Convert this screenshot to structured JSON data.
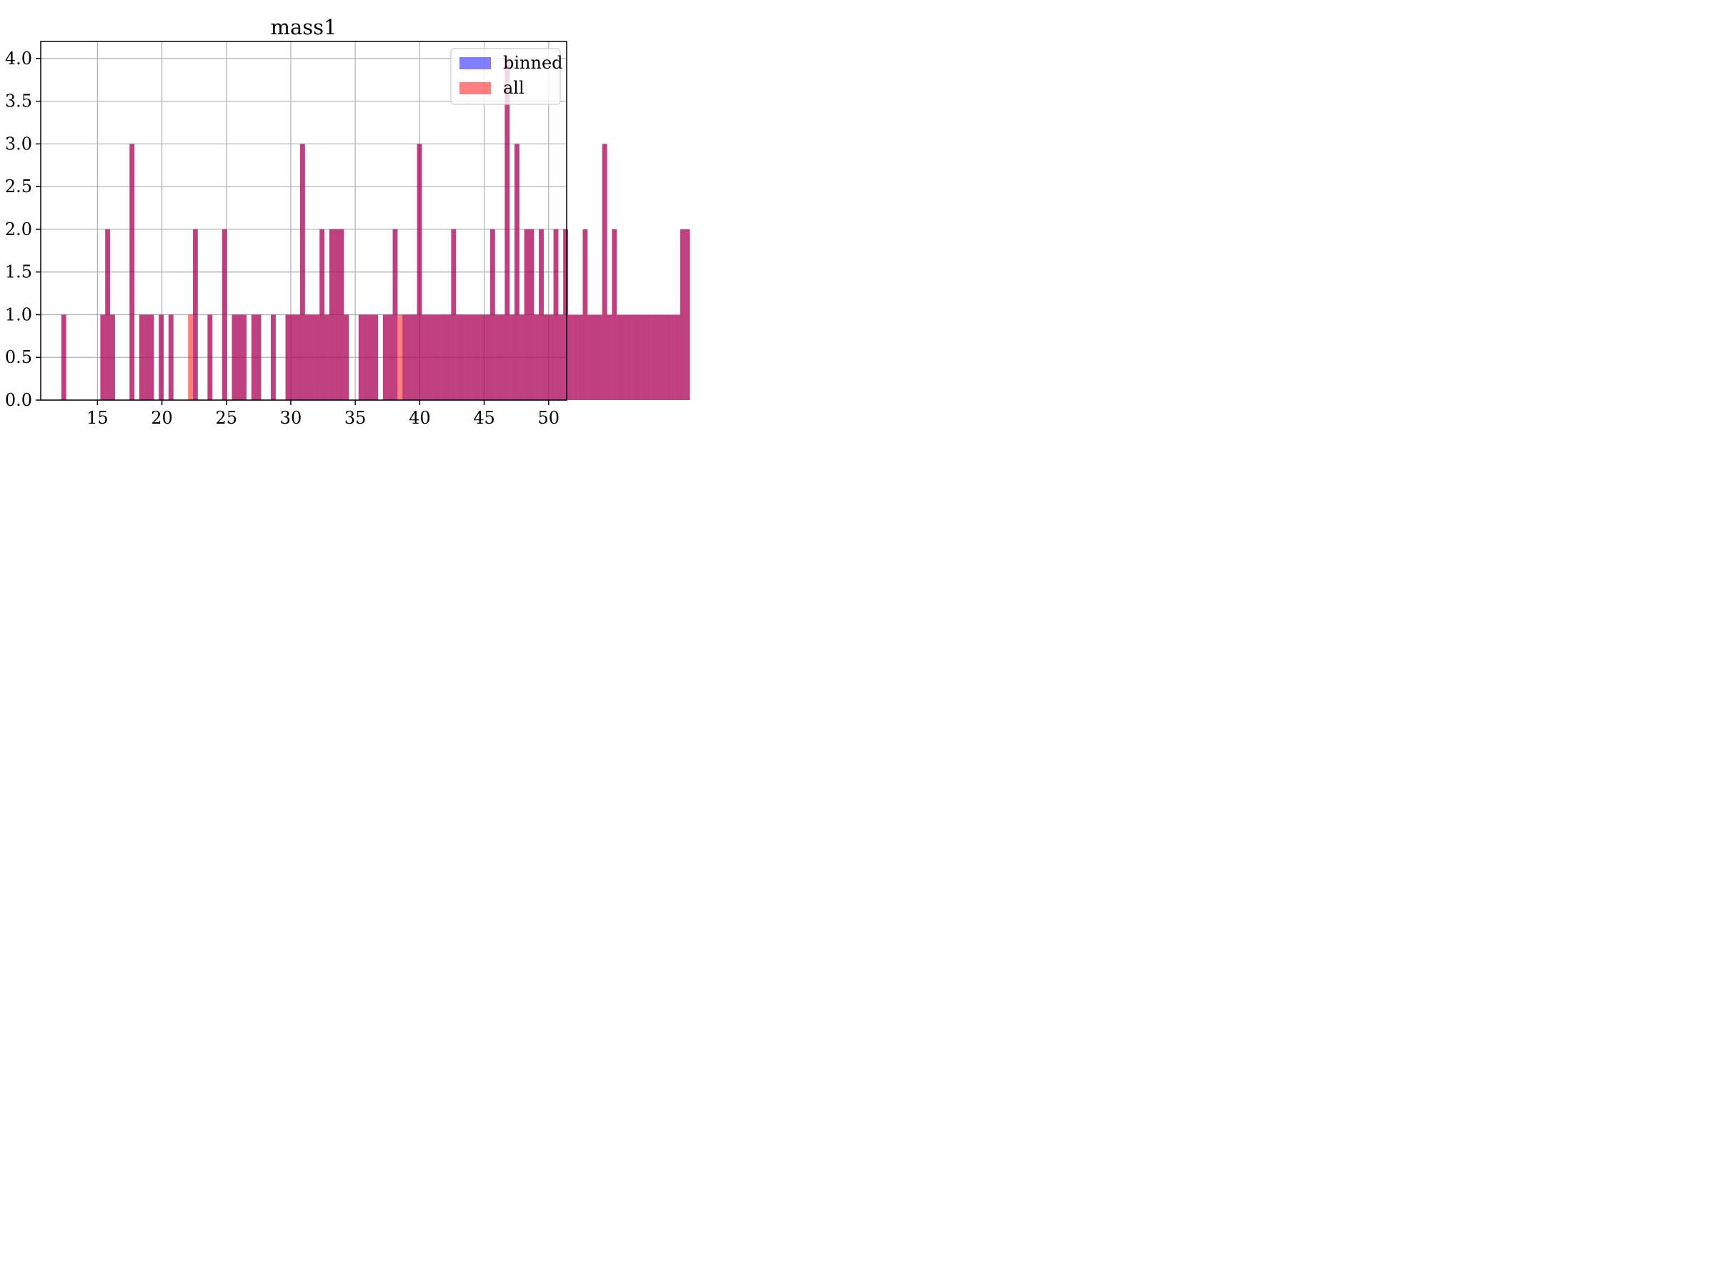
{
  "legend_labels": {
    "binned": "binned",
    "all": "all"
  },
  "colors": {
    "binned": "#0000ff",
    "all": "#ff0000",
    "bar_alpha": 0.5,
    "grid": "#b0b0b0",
    "axis": "#000000"
  },
  "chart_data": [
    {
      "type": "bar",
      "title": "mass1",
      "legend_position": "top-right",
      "grid": true,
      "xlim": [
        10.6,
        51.4
      ],
      "ylim": [
        0,
        4.2
      ],
      "xticks": [
        15,
        20,
        25,
        30,
        35,
        40,
        45,
        50
      ],
      "yticks": [
        0,
        0.5,
        1,
        1.5,
        2,
        2.5,
        3,
        3.5,
        4
      ],
      "ytick_labels": [
        "0.0",
        "0.5",
        "1.0",
        "1.5",
        "2.0",
        "2.5",
        "3.0",
        "3.5",
        "4.0"
      ],
      "bin_start": 12.2,
      "bin_width": 0.378,
      "series": [
        {
          "name": "binned",
          "bars": [
            [
              0,
              1
            ],
            [
              8,
              1
            ],
            [
              9,
              2
            ],
            [
              10,
              1
            ],
            [
              14,
              3
            ],
            [
              16,
              1
            ],
            [
              17,
              1
            ],
            [
              18,
              1
            ],
            [
              20,
              1
            ],
            [
              22,
              1
            ],
            [
              27,
              2
            ],
            [
              30,
              1
            ],
            [
              33,
              2
            ],
            [
              35,
              1
            ],
            [
              36,
              1
            ],
            [
              37,
              1
            ],
            [
              39,
              1
            ],
            [
              40,
              1
            ],
            [
              43,
              1
            ],
            [
              46,
              1
            ],
            [
              47,
              1
            ],
            [
              48,
              1
            ],
            [
              49,
              3
            ],
            [
              50,
              1
            ],
            [
              51,
              1
            ],
            [
              52,
              1
            ],
            [
              53,
              2
            ],
            [
              54,
              1
            ],
            [
              55,
              2
            ],
            [
              56,
              2
            ],
            [
              57,
              2
            ],
            [
              58,
              1
            ],
            [
              61,
              1
            ],
            [
              62,
              1
            ],
            [
              63,
              1
            ],
            [
              64,
              1
            ],
            [
              66,
              1
            ],
            [
              67,
              1
            ],
            [
              68,
              2
            ],
            [
              70,
              1
            ],
            [
              71,
              1
            ],
            [
              72,
              1
            ],
            [
              73,
              3
            ],
            [
              74,
              1
            ],
            [
              75,
              1
            ],
            [
              76,
              1
            ],
            [
              77,
              1
            ],
            [
              78,
              1
            ],
            [
              79,
              1
            ],
            [
              80,
              2
            ],
            [
              81,
              1
            ],
            [
              82,
              1
            ],
            [
              83,
              1
            ],
            [
              84,
              1
            ],
            [
              85,
              1
            ],
            [
              86,
              1
            ],
            [
              87,
              1
            ],
            [
              88,
              2
            ],
            [
              89,
              1
            ],
            [
              90,
              1
            ],
            [
              91,
              4
            ],
            [
              92,
              1
            ],
            [
              93,
              3
            ],
            [
              94,
              1
            ],
            [
              95,
              2
            ],
            [
              96,
              2
            ],
            [
              97,
              1
            ],
            [
              98,
              2
            ],
            [
              99,
              1
            ],
            [
              100,
              1
            ],
            [
              101,
              2
            ],
            [
              102,
              1
            ],
            [
              103,
              2
            ],
            [
              104,
              1
            ],
            [
              105,
              1
            ],
            [
              106,
              1
            ],
            [
              107,
              2
            ],
            [
              108,
              1
            ],
            [
              109,
              1
            ],
            [
              110,
              1
            ],
            [
              111,
              3
            ],
            [
              112,
              1
            ],
            [
              113,
              2
            ],
            [
              114,
              1
            ],
            [
              115,
              1
            ],
            [
              116,
              1
            ],
            [
              117,
              1
            ],
            [
              118,
              1
            ],
            [
              119,
              1
            ],
            [
              120,
              1
            ],
            [
              121,
              1
            ],
            [
              122,
              1
            ],
            [
              123,
              1
            ],
            [
              124,
              1
            ],
            [
              125,
              1
            ],
            [
              126,
              1
            ],
            [
              127,
              2
            ],
            [
              128,
              2
            ]
          ]
        },
        {
          "name": "all",
          "bars": [
            [
              0,
              1
            ],
            [
              8,
              1
            ],
            [
              9,
              2
            ],
            [
              10,
              1
            ],
            [
              14,
              3
            ],
            [
              16,
              1
            ],
            [
              17,
              1
            ],
            [
              18,
              1
            ],
            [
              20,
              1
            ],
            [
              22,
              1
            ],
            [
              26,
              1
            ],
            [
              27,
              2
            ],
            [
              30,
              1
            ],
            [
              33,
              2
            ],
            [
              35,
              1
            ],
            [
              36,
              1
            ],
            [
              37,
              1
            ],
            [
              39,
              1
            ],
            [
              40,
              1
            ],
            [
              43,
              1
            ],
            [
              46,
              1
            ],
            [
              47,
              1
            ],
            [
              48,
              1
            ],
            [
              49,
              3
            ],
            [
              50,
              1
            ],
            [
              51,
              1
            ],
            [
              52,
              1
            ],
            [
              53,
              2
            ],
            [
              54,
              1
            ],
            [
              55,
              2
            ],
            [
              56,
              2
            ],
            [
              57,
              2
            ],
            [
              58,
              1
            ],
            [
              61,
              1
            ],
            [
              62,
              1
            ],
            [
              63,
              1
            ],
            [
              64,
              1
            ],
            [
              66,
              1
            ],
            [
              67,
              1
            ],
            [
              68,
              2
            ],
            [
              69,
              1
            ],
            [
              70,
              1
            ],
            [
              71,
              1
            ],
            [
              72,
              1
            ],
            [
              73,
              3
            ],
            [
              74,
              1
            ],
            [
              75,
              1
            ],
            [
              76,
              1
            ],
            [
              77,
              1
            ],
            [
              78,
              1
            ],
            [
              79,
              1
            ],
            [
              80,
              2
            ],
            [
              81,
              1
            ],
            [
              82,
              1
            ],
            [
              83,
              1
            ],
            [
              84,
              1
            ],
            [
              85,
              1
            ],
            [
              86,
              1
            ],
            [
              87,
              1
            ],
            [
              88,
              2
            ],
            [
              89,
              1
            ],
            [
              90,
              1
            ],
            [
              91,
              4
            ],
            [
              92,
              1
            ],
            [
              93,
              3
            ],
            [
              94,
              1
            ],
            [
              95,
              2
            ],
            [
              96,
              2
            ],
            [
              97,
              1
            ],
            [
              98,
              2
            ],
            [
              99,
              1
            ],
            [
              100,
              1
            ],
            [
              101,
              2
            ],
            [
              102,
              1
            ],
            [
              103,
              2
            ],
            [
              104,
              1
            ],
            [
              105,
              1
            ],
            [
              106,
              1
            ],
            [
              107,
              2
            ],
            [
              108,
              1
            ],
            [
              109,
              1
            ],
            [
              110,
              1
            ],
            [
              111,
              3
            ],
            [
              112,
              1
            ],
            [
              113,
              2
            ],
            [
              114,
              1
            ],
            [
              115,
              1
            ],
            [
              116,
              1
            ],
            [
              117,
              1
            ],
            [
              118,
              1
            ],
            [
              119,
              1
            ],
            [
              120,
              1
            ],
            [
              121,
              1
            ],
            [
              122,
              1
            ],
            [
              123,
              1
            ],
            [
              124,
              1
            ],
            [
              125,
              1
            ],
            [
              126,
              1
            ],
            [
              127,
              2
            ],
            [
              128,
              2
            ]
          ]
        }
      ]
    }
  ]
}
